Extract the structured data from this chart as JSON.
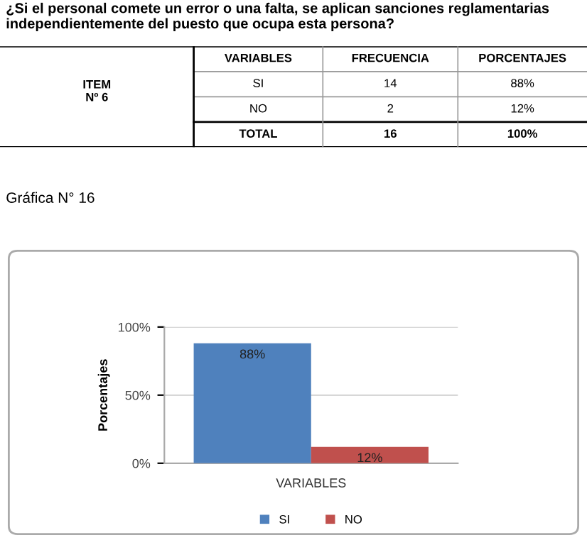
{
  "chart_data": {
    "type": "bar",
    "title": "¿Si el personal comete un error o una falta, se aplican sanciones reglamentarias independientemente del puesto que ocupa esta persona?",
    "annotations": [
      "VARIABLES",
      "FRECUENCIA",
      "PORCENTAJES",
      "SI",
      "14",
      "88%",
      "NO",
      "2",
      "12%",
      "TOTAL",
      "16",
      "100%",
      "ITEM\nNº 6",
      "Gráfica N° 16"
    ],
    "categories": [
      null
    ],
    "series": [
      {
        "name": "SI",
        "color": "#4f81bd",
        "values": [
          88
        ],
        "value_labels": [
          "88%"
        ]
      },
      {
        "name": "NO",
        "color": "#c0504d",
        "values": [
          12
        ],
        "value_labels": [
          "12%"
        ]
      }
    ],
    "xlabel": "VARIABLES",
    "ylabel": "Porcentajes",
    "ylim": [
      0,
      100
    ],
    "yticks": [
      {
        "value": 0,
        "label": "0%"
      },
      {
        "value": 50,
        "label": "50%"
      },
      {
        "value": 100,
        "label": "100%"
      }
    ],
    "grid": "y",
    "legend": "bottom"
  }
}
